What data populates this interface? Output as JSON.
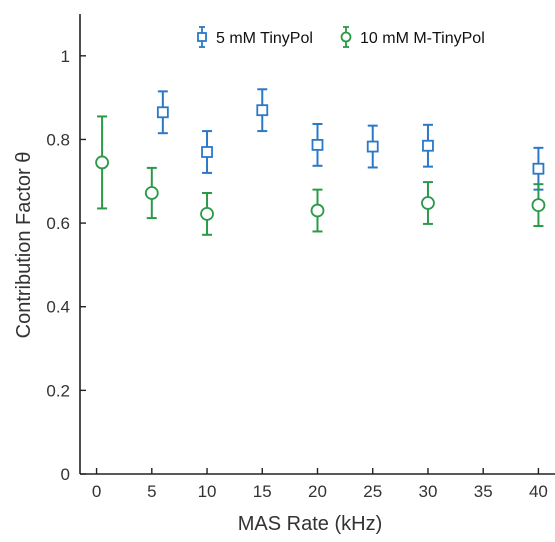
{
  "chart_data": {
    "type": "scatter",
    "xlabel": "MAS Rate (kHz)",
    "ylabel": "Contribution Factor θ",
    "xlim": [
      -1.5,
      41.5
    ],
    "ylim": [
      0,
      1.1
    ],
    "xticks": [
      0,
      5,
      10,
      15,
      20,
      25,
      30,
      35,
      40
    ],
    "yticks": [
      0,
      0.2,
      0.4,
      0.6,
      0.8,
      1
    ],
    "grid": false,
    "legend_position": "top-right",
    "series": [
      {
        "name": "5 mM TinyPol",
        "marker": "square",
        "color": "#2a78c8",
        "x": [
          6,
          10,
          15,
          20,
          25,
          30,
          40
        ],
        "y": [
          0.865,
          0.77,
          0.87,
          0.787,
          0.783,
          0.785,
          0.73
        ],
        "err_low": [
          0.05,
          0.05,
          0.05,
          0.05,
          0.05,
          0.05,
          0.05
        ],
        "err_high": [
          0.05,
          0.05,
          0.05,
          0.05,
          0.05,
          0.05,
          0.05
        ]
      },
      {
        "name": "10 mM M-TinyPol",
        "marker": "circle",
        "color": "#2a9a48",
        "x": [
          0.5,
          5,
          10,
          20,
          30,
          40
        ],
        "y": [
          0.745,
          0.672,
          0.622,
          0.63,
          0.648,
          0.643
        ],
        "err_low": [
          0.11,
          0.06,
          0.05,
          0.05,
          0.05,
          0.05
        ],
        "err_high": [
          0.11,
          0.06,
          0.05,
          0.05,
          0.05,
          0.05
        ]
      }
    ]
  }
}
